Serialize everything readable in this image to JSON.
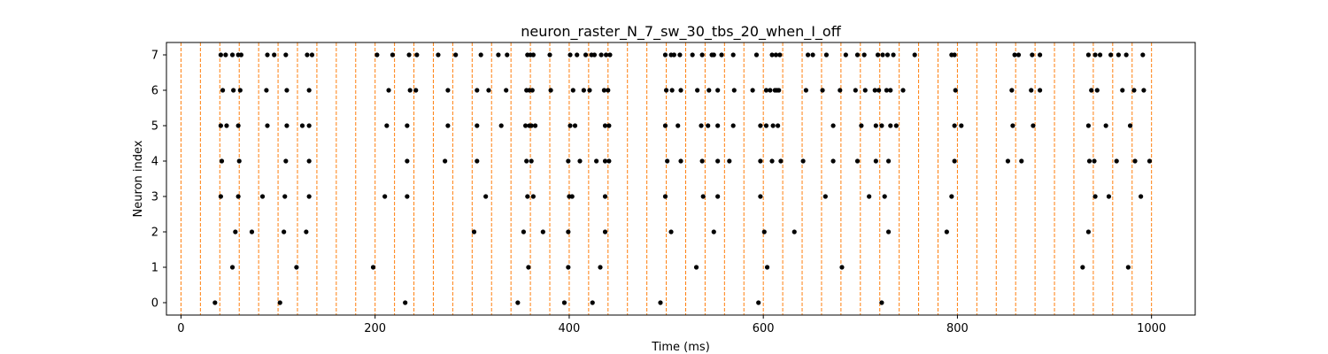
{
  "chart_data": {
    "type": "scatter",
    "title": "neuron_raster_N_7_sw_30_tbs_20_when_I_off",
    "xlabel": "Time (ms)",
    "ylabel": "Neuron index",
    "xlim": [
      -15,
      1045
    ],
    "ylim": [
      -0.35,
      7.35
    ],
    "xticks": [
      0,
      200,
      400,
      600,
      800,
      1000
    ],
    "yticks": [
      0,
      1,
      2,
      3,
      4,
      5,
      6,
      7
    ],
    "grid": false,
    "legend": "none",
    "vlines": {
      "style": "dashed",
      "color": "#ff7f0e",
      "x": [
        0,
        20,
        40,
        60,
        80,
        100,
        120,
        140,
        160,
        180,
        200,
        220,
        240,
        260,
        280,
        300,
        320,
        340,
        360,
        380,
        400,
        420,
        440,
        460,
        480,
        500,
        520,
        540,
        560,
        580,
        600,
        620,
        640,
        660,
        680,
        700,
        720,
        740,
        760,
        780,
        800,
        820,
        840,
        860,
        880,
        900,
        920,
        940,
        960,
        980,
        1000
      ]
    },
    "series": [
      {
        "neuron": 0,
        "spikes": [
          35,
          102,
          231,
          347,
          395,
          424,
          494,
          595,
          722
        ]
      },
      {
        "neuron": 1,
        "spikes": [
          53,
          119,
          198,
          358,
          399,
          432,
          531,
          604,
          681,
          929,
          976
        ]
      },
      {
        "neuron": 2,
        "spikes": [
          56,
          73,
          106,
          129,
          302,
          353,
          373,
          399,
          437,
          505,
          549,
          601,
          632,
          729,
          789,
          935
        ]
      },
      {
        "neuron": 3,
        "spikes": [
          41,
          59,
          84,
          107,
          132,
          210,
          233,
          314,
          357,
          363,
          400,
          403,
          437,
          499,
          538,
          553,
          597,
          664,
          709,
          725,
          794,
          942,
          956,
          989
        ]
      },
      {
        "neuron": 4,
        "spikes": [
          42,
          60,
          108,
          132,
          233,
          272,
          305,
          356,
          361,
          399,
          411,
          428,
          437,
          441,
          501,
          515,
          537,
          553,
          565,
          597,
          609,
          618,
          641,
          672,
          697,
          716,
          729,
          797,
          852,
          866,
          936,
          941,
          964,
          983,
          998
        ]
      },
      {
        "neuron": 5,
        "spikes": [
          41,
          47,
          59,
          89,
          109,
          125,
          132,
          212,
          233,
          275,
          305,
          330,
          355,
          359,
          361,
          365,
          401,
          406,
          437,
          441,
          499,
          512,
          536,
          543,
          553,
          569,
          597,
          603,
          610,
          615,
          672,
          701,
          716,
          722,
          731,
          737,
          797,
          804,
          857,
          878,
          935,
          953,
          978
        ]
      },
      {
        "neuron": 6,
        "spikes": [
          43,
          54,
          61,
          88,
          109,
          132,
          214,
          236,
          242,
          275,
          305,
          317,
          335,
          356,
          359,
          362,
          381,
          404,
          415,
          421,
          436,
          440,
          500,
          506,
          515,
          532,
          544,
          553,
          570,
          589,
          603,
          607,
          612,
          614,
          616,
          644,
          661,
          679,
          695,
          705,
          715,
          719,
          727,
          731,
          744,
          798,
          856,
          876,
          885,
          938,
          944,
          970,
          982,
          992
        ]
      },
      {
        "neuron": 7,
        "spikes": [
          41,
          46,
          53,
          59,
          62,
          89,
          96,
          108,
          130,
          135,
          202,
          218,
          235,
          243,
          265,
          283,
          309,
          327,
          336,
          357,
          360,
          363,
          380,
          401,
          408,
          417,
          423,
          426,
          433,
          438,
          442,
          499,
          505,
          508,
          514,
          527,
          537,
          547,
          549,
          557,
          569,
          593,
          609,
          613,
          617,
          646,
          651,
          665,
          685,
          697,
          704,
          718,
          723,
          728,
          734,
          756,
          794,
          797,
          859,
          863,
          877,
          885,
          935,
          942,
          947,
          958,
          966,
          974,
          991
        ]
      }
    ]
  }
}
